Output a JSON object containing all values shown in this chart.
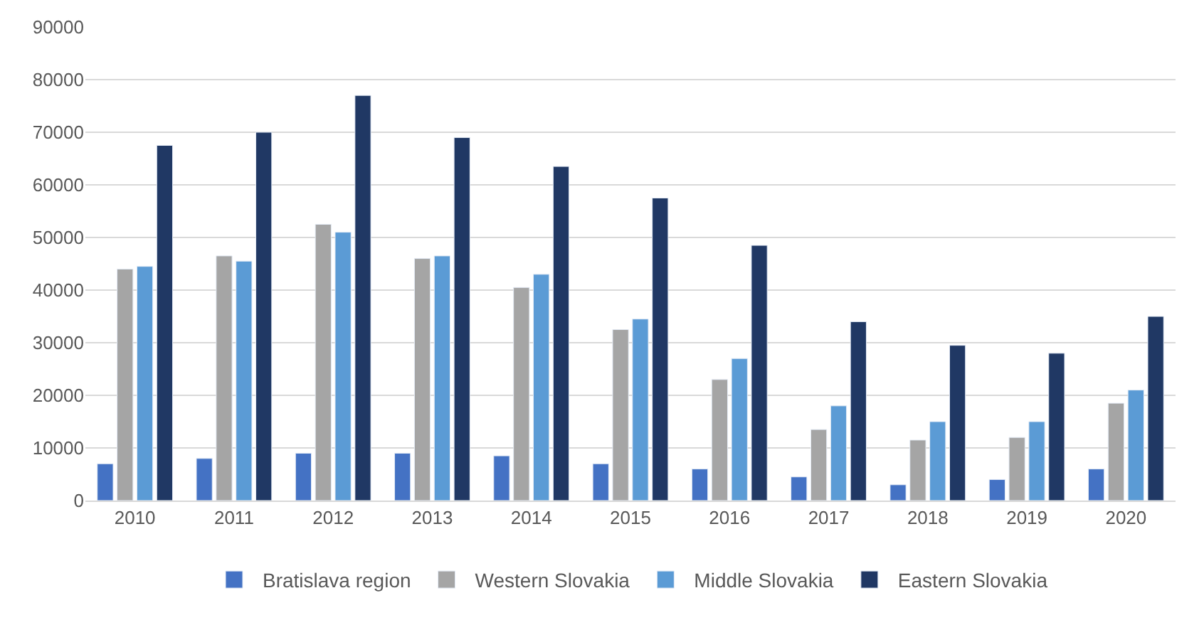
{
  "chart_data": {
    "type": "bar",
    "categories": [
      "2010",
      "2011",
      "2012",
      "2013",
      "2014",
      "2015",
      "2016",
      "2017",
      "2018",
      "2019",
      "2020"
    ],
    "series": [
      {
        "name": "Bratislava region",
        "color": "#4472c4",
        "values": [
          7000,
          8000,
          9000,
          9000,
          8500,
          7000,
          6000,
          4500,
          3000,
          4000,
          6000
        ]
      },
      {
        "name": "Western Slovakia",
        "color": "#a5a5a5",
        "values": [
          44000,
          46500,
          52500,
          46000,
          40500,
          32500,
          23000,
          13500,
          11500,
          12000,
          18500
        ]
      },
      {
        "name": "Middle Slovakia",
        "color": "#5b9bd5",
        "values": [
          44500,
          45500,
          51000,
          46500,
          43000,
          34500,
          27000,
          18000,
          15000,
          15000,
          21000
        ]
      },
      {
        "name": "Eastern Slovakia",
        "color": "#203864",
        "values": [
          67500,
          70000,
          77000,
          69000,
          63500,
          57500,
          48500,
          34000,
          29500,
          28000,
          35000
        ]
      }
    ],
    "ylim": [
      0,
      90000
    ],
    "yticks": [
      0,
      10000,
      20000,
      30000,
      40000,
      50000,
      60000,
      70000,
      80000,
      90000
    ],
    "grid": "y",
    "legend": "bottom"
  }
}
